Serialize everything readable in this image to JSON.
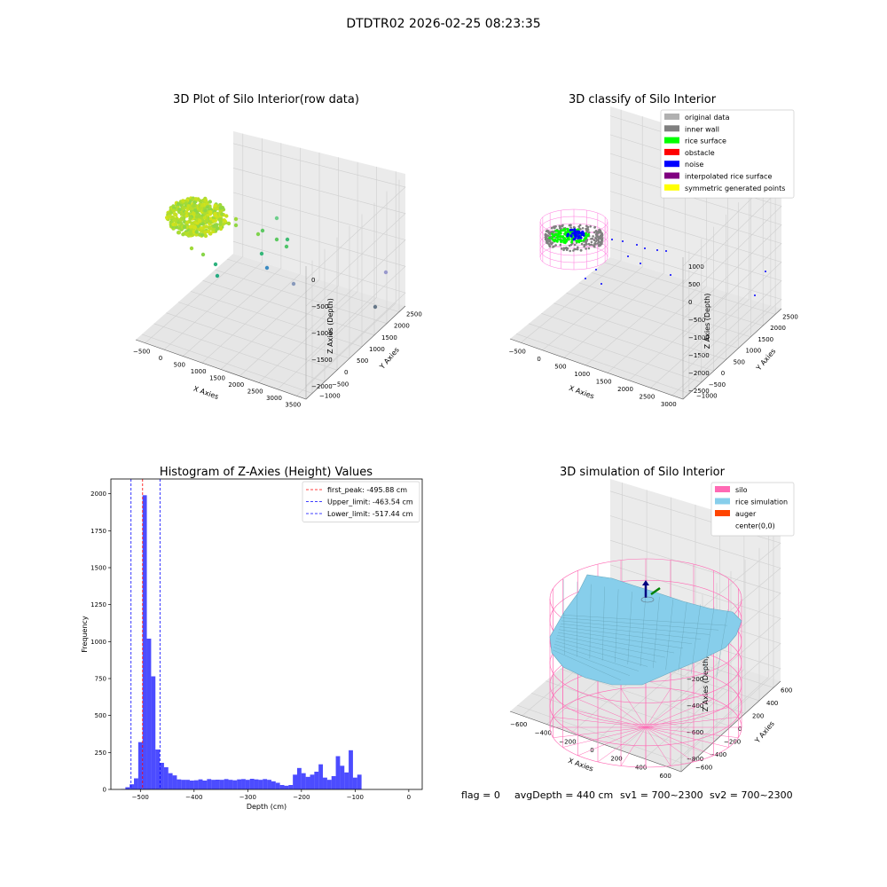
{
  "suptitle": "DTDTR02 2026-02-25 08:23:35",
  "status_line": {
    "flag": "flag = 0",
    "avg_depth": "avgDepth = 440 cm",
    "sv1": "sv1 = 700~2300",
    "sv2": "sv2 = 700~2300"
  },
  "colors": {
    "histogram_bars": "#0000ff",
    "first_peak_line": "#ff0000",
    "limit_lines": "#0000ff",
    "silo": "#ff69b4",
    "rice_simulation": "#87ceeb",
    "auger": "#ff4500"
  },
  "chart_data": [
    {
      "type": "scatter",
      "projection": "3d",
      "title": "3D Plot of Silo Interior(row data)",
      "xlabel": "X Axies",
      "ylabel": "Y Axies",
      "zlabel": "Z Axies (Depth)",
      "x_ticks": [
        "−500",
        "0",
        "500",
        "1000",
        "1500",
        "2000",
        "2500",
        "3000",
        "3500"
      ],
      "y_ticks": [
        "−1000",
        "−500",
        "0",
        "500",
        "1000",
        "1500",
        "2000",
        "2500"
      ],
      "z_ticks": [
        "0",
        "−500",
        "−1000",
        "−1500",
        "−2000"
      ],
      "grid": true,
      "colormap": "viridis"
    },
    {
      "type": "scatter",
      "projection": "3d",
      "title": "3D classify of Silo Interior",
      "xlabel": "X Axies",
      "ylabel": "Y Axies",
      "zlabel": "Z Axies (Depth)",
      "x_ticks": [
        "−500",
        "0",
        "500",
        "1000",
        "1500",
        "2000",
        "2500",
        "3000"
      ],
      "y_ticks": [
        "−1000",
        "−500",
        "0",
        "500",
        "1000",
        "1500",
        "2000",
        "2500"
      ],
      "z_ticks": [
        "1000",
        "500",
        "0",
        "−500",
        "−1000",
        "−1500",
        "−2000",
        "−2500"
      ],
      "grid": true,
      "legend_position": "top-right",
      "legend": [
        {
          "label": "original data",
          "color": "#b0b0b0"
        },
        {
          "label": "inner wall",
          "color": "#808080"
        },
        {
          "label": "rice surface",
          "color": "#00ff00"
        },
        {
          "label": "obstacle",
          "color": "#ff0000"
        },
        {
          "label": "noise",
          "color": "#0000ff"
        },
        {
          "label": "interpolated rice surface",
          "color": "#800080"
        },
        {
          "label": "symmetric generated points",
          "color": "#ffff00"
        }
      ]
    },
    {
      "type": "bar",
      "subtype": "histogram",
      "title": "Histogram of Z-Axies (Height) Values",
      "xlabel": "Depth (cm)",
      "ylabel": "Frequency",
      "xlim": [
        -555,
        25
      ],
      "ylim": [
        0,
        2100
      ],
      "x_ticks": [
        "−500",
        "−400",
        "−300",
        "−200",
        "−100",
        "0"
      ],
      "y_ticks": [
        "0",
        "250",
        "500",
        "750",
        "1000",
        "1250",
        "1500",
        "1750",
        "2000"
      ],
      "bin_width": 8.0,
      "bin_start": -536,
      "values": [
        3,
        15,
        35,
        75,
        320,
        1990,
        1020,
        765,
        270,
        180,
        150,
        110,
        95,
        68,
        65,
        65,
        60,
        62,
        68,
        60,
        70,
        65,
        66,
        65,
        70,
        65,
        62,
        68,
        70,
        65,
        72,
        68,
        65,
        70,
        65,
        55,
        45,
        30,
        25,
        30,
        100,
        145,
        110,
        85,
        100,
        120,
        170,
        80,
        65,
        90,
        225,
        160,
        115,
        265,
        80,
        100
      ],
      "vlines": [
        {
          "name": "first_peak: -495.88 cm",
          "value": -495.88,
          "color": "#ff0000"
        },
        {
          "name": "Upper_limit: -463.54 cm",
          "value": -463.54,
          "color": "#0000ff"
        },
        {
          "name": "Lower_limit: -517.44 cm",
          "value": -517.44,
          "color": "#0000ff"
        }
      ],
      "legend_position": "top-right",
      "grid": false
    },
    {
      "type": "surface",
      "projection": "3d",
      "title": "3D simulation of Silo Interior",
      "xlabel": "X Axies",
      "ylabel": "Y Axies",
      "zlabel": "Z Axies (Depth)",
      "x_ticks": [
        "−600",
        "−400",
        "−200",
        "0",
        "200",
        "400",
        "600"
      ],
      "y_ticks": [
        "−600",
        "−400",
        "−200",
        "0",
        "200",
        "400",
        "600"
      ],
      "z_ticks": [
        "200",
        "0",
        "−200",
        "−400",
        "−600",
        "−800"
      ],
      "grid": true,
      "legend_position": "top-right",
      "legend": [
        {
          "label": "silo",
          "color": "#ff69b4"
        },
        {
          "label": "rice simulation",
          "color": "#87ceeb"
        },
        {
          "label": "auger",
          "color": "#ff4500"
        },
        {
          "label": "center(0,0)",
          "color": ""
        }
      ]
    }
  ]
}
